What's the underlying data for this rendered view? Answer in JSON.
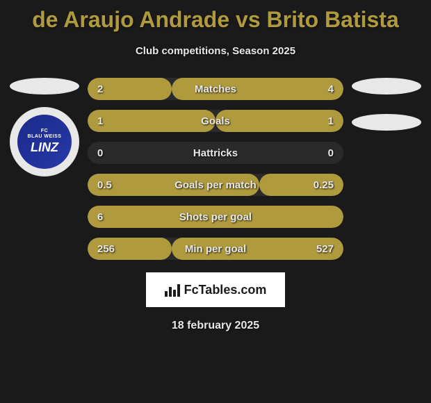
{
  "title": "de Araujo Andrade vs Brito Batista",
  "subtitle": "Club competitions, Season 2025",
  "date": "18 february 2025",
  "fctables_label": "FcTables.com",
  "badge": {
    "text_top": "FC",
    "text_mid": "BLAU WEISS",
    "text_main": "LINZ"
  },
  "colors": {
    "background": "#1a1a1a",
    "title_color": "#b09a3e",
    "text_color": "#e8e8e8",
    "bar_left_color": "#b09a3e",
    "bar_right_color": "#b09a3e",
    "bar_track": "#2a2a2a"
  },
  "stats": [
    {
      "label": "Matches",
      "left_value": "2",
      "right_value": "4",
      "left_width_pct": 33,
      "right_width_pct": 67
    },
    {
      "label": "Goals",
      "left_value": "1",
      "right_value": "1",
      "left_width_pct": 50,
      "right_width_pct": 50
    },
    {
      "label": "Hattricks",
      "left_value": "0",
      "right_value": "0",
      "left_width_pct": 0,
      "right_width_pct": 0
    },
    {
      "label": "Goals per match",
      "left_value": "0.5",
      "right_value": "0.25",
      "left_width_pct": 67,
      "right_width_pct": 33
    },
    {
      "label": "Shots per goal",
      "left_value": "6",
      "right_value": "",
      "left_width_pct": 100,
      "right_width_pct": 0
    },
    {
      "label": "Min per goal",
      "left_value": "256",
      "right_value": "527",
      "left_width_pct": 33,
      "right_width_pct": 67
    }
  ]
}
